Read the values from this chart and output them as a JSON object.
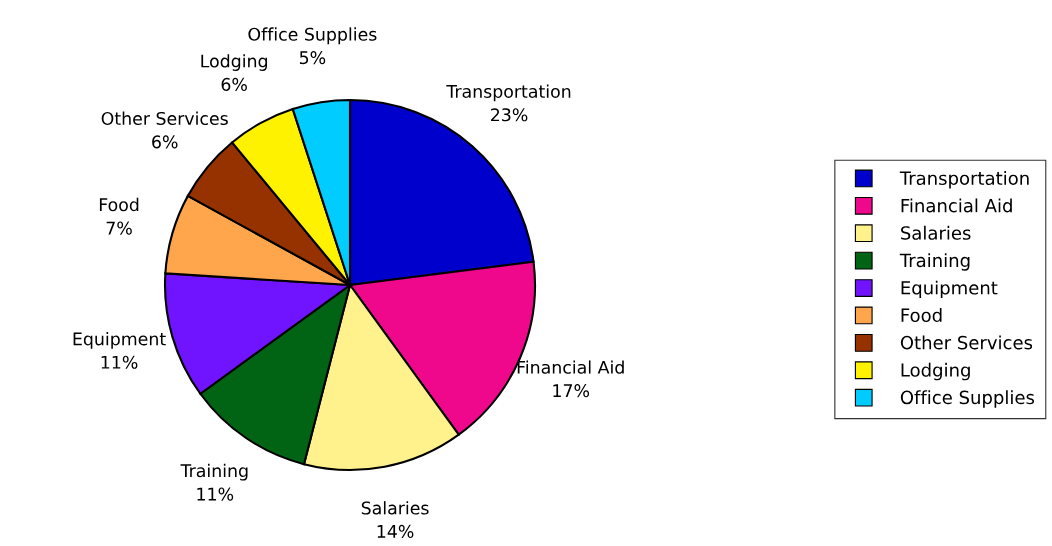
{
  "chart_data": {
    "type": "pie",
    "categories": [
      "Transportation",
      "Financial Aid",
      "Salaries",
      "Training",
      "Equipment",
      "Food",
      "Other Services",
      "Lodging",
      "Office Supplies"
    ],
    "values": [
      23,
      17,
      14,
      11,
      11,
      7,
      6,
      6,
      5
    ],
    "value_labels": [
      "23%",
      "17%",
      "14%",
      "11%",
      "11%",
      "7%",
      "6%",
      "6%",
      "5%"
    ],
    "colors": [
      "#0000cc",
      "#f0088c",
      "#fff28c",
      "#006414",
      "#7014ff",
      "#ffa64d",
      "#963200",
      "#fff200",
      "#00ccff"
    ],
    "legend": "right"
  }
}
